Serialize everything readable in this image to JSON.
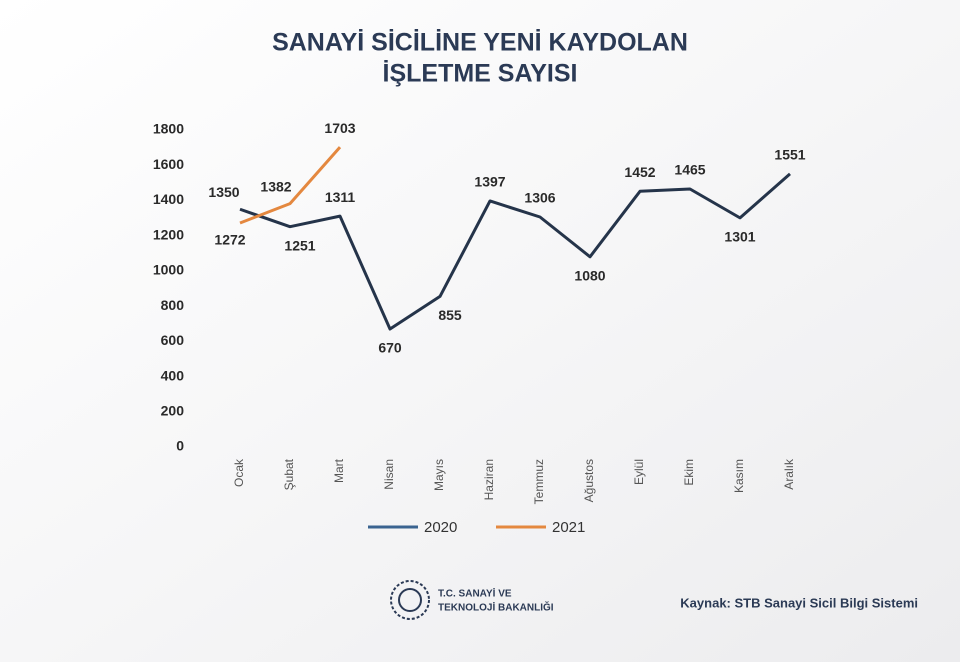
{
  "chart_data": {
    "type": "line",
    "title": [
      "SANAYİ SİCİLİNE YENİ KAYDOLAN",
      "İŞLETME SAYISI"
    ],
    "categories": [
      "Ocak",
      "Şubat",
      "Mart",
      "Nisan",
      "Mayıs",
      "Haziran",
      "Temmuz",
      "Ağustos",
      "Eylül",
      "Ekim",
      "Kasım",
      "Aralık"
    ],
    "series": [
      {
        "name": "2020",
        "color": "#25344a",
        "legend_color": "#3a6390",
        "values": [
          1350,
          1251,
          1311,
          670,
          855,
          1397,
          1306,
          1080,
          1452,
          1465,
          1301,
          1551
        ]
      },
      {
        "name": "2021",
        "color": "#e4883f",
        "legend_color": "#e4883f",
        "values": [
          1272,
          1382,
          1703,
          null,
          null,
          null,
          null,
          null,
          null,
          null,
          null,
          null
        ]
      }
    ],
    "ylim": [
      0,
      1800
    ],
    "yticks": [
      0,
      200,
      400,
      600,
      800,
      1000,
      1200,
      1400,
      1600,
      1800
    ],
    "grid": false
  },
  "footer": {
    "ministry": [
      "T.C. SANAYİ VE",
      "TEKNOLOJİ BAKANLIĞI"
    ],
    "source": "Kaynak: STB Sanayi Sicil Bilgi Sistemi"
  }
}
